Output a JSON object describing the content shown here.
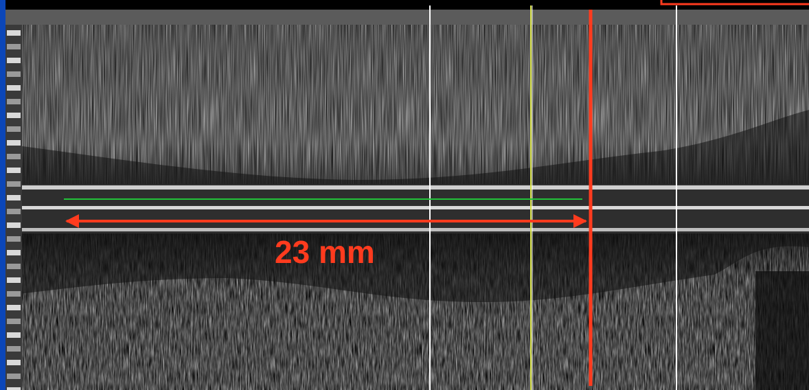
{
  "measurement": {
    "label": "23 mm",
    "color": "#ff3b1e"
  },
  "colors": {
    "marker_red": "#ff3b1e",
    "lumen_green": "#22c43a",
    "frame_line_white": "#ffffff",
    "frame_line_yellow": "#d8e24a",
    "left_edge_blue": "#0b46b8",
    "tissue_gray": "#8a8a8a",
    "background": "#000000"
  }
}
